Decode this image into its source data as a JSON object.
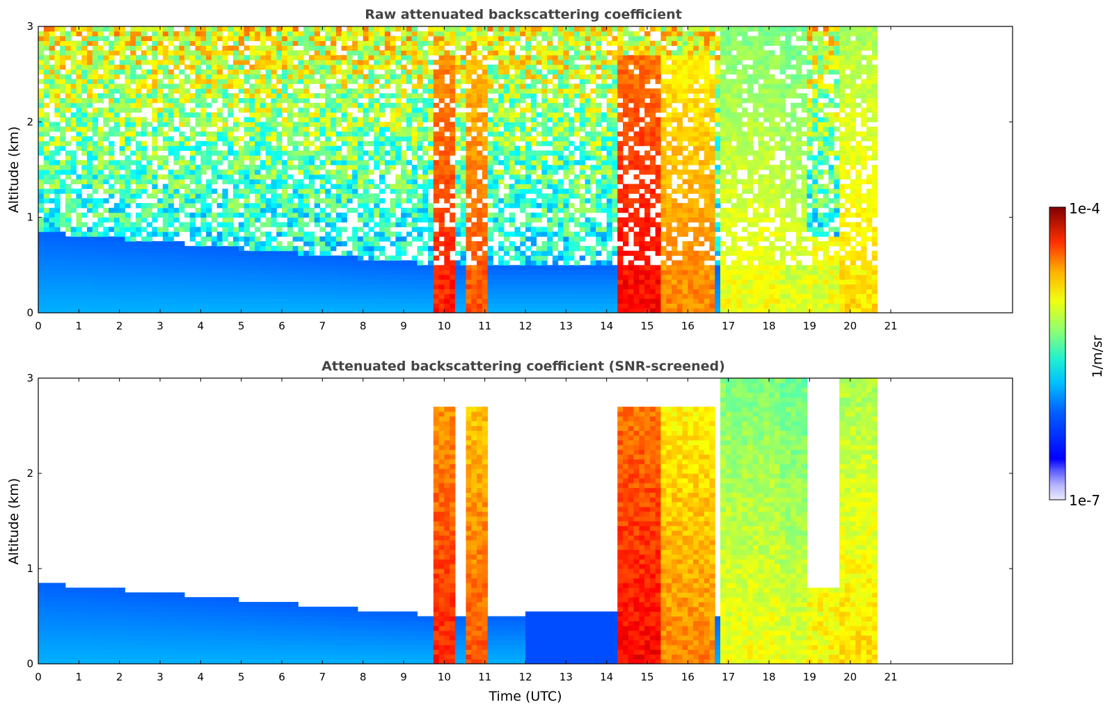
{
  "chart_data": [
    {
      "type": "heatmap",
      "title": "Raw attenuated backscattering coefficient",
      "xlabel": "",
      "ylabel": "Altitude (km)",
      "xlim": [
        0,
        24
      ],
      "ylim": [
        0,
        3
      ],
      "x_ticks": [
        0,
        1,
        2,
        3,
        4,
        5,
        6,
        7,
        8,
        9,
        10,
        11,
        12,
        13,
        14,
        15,
        16,
        17,
        18,
        19,
        20,
        21
      ],
      "y_ticks": [
        0,
        1,
        2,
        3
      ],
      "data_extent_x": [
        0,
        20.7
      ],
      "screened": false
    },
    {
      "type": "heatmap",
      "title": "Attenuated backscattering coefficient (SNR-screened)",
      "xlabel": "Time (UTC)",
      "ylabel": "Altitude (km)",
      "xlim": [
        0,
        24
      ],
      "ylim": [
        0,
        3
      ],
      "x_ticks": [
        0,
        1,
        2,
        3,
        4,
        5,
        6,
        7,
        8,
        9,
        10,
        11,
        12,
        13,
        14,
        15,
        16,
        17,
        18,
        19,
        20,
        21
      ],
      "y_ticks": [
        0,
        1,
        2,
        3
      ],
      "data_extent_x": [
        0,
        20.7
      ],
      "screened": true
    }
  ],
  "colorbar": {
    "label": "1/m/sr",
    "max_label": "1e-4",
    "min_label": "1e-7",
    "colormap": "jet"
  }
}
